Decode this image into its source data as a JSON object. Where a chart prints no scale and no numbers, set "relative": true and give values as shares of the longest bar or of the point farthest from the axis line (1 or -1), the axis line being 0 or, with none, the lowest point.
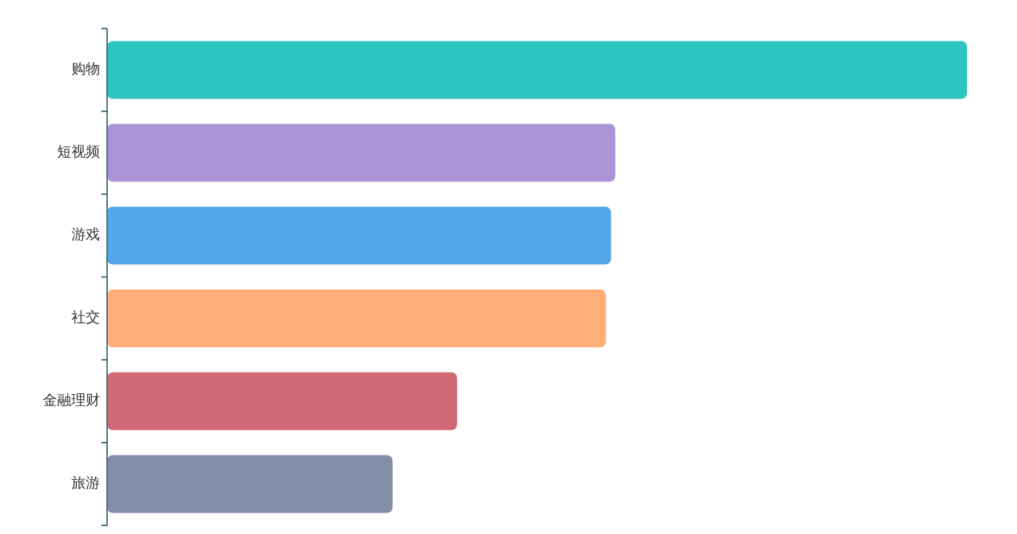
{
  "chart_data": {
    "type": "bar",
    "orientation": "horizontal",
    "relative": true,
    "categories": [
      "购物",
      "短视频",
      "游戏",
      "社交",
      "金融理财",
      "旅游"
    ],
    "values": [
      1,
      0.591,
      0.586,
      0.58,
      0.407,
      0.332
    ],
    "colors": [
      "#2ec4c1",
      "#ab94d6",
      "#52a7e6",
      "#ffae79",
      "#d06a76",
      "#848ea8"
    ]
  }
}
